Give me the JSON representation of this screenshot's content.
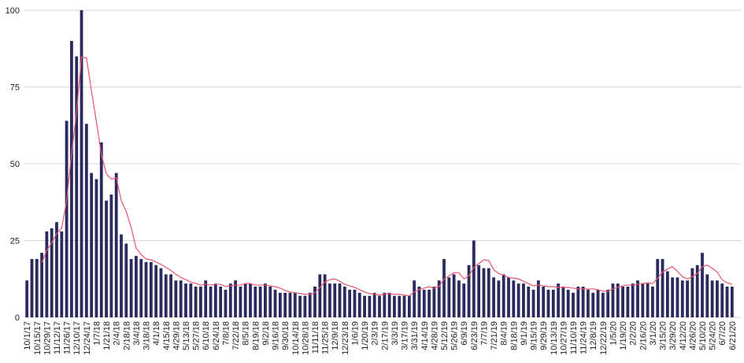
{
  "chart_data": {
    "type": "bar",
    "categories": [
      "10/1/17",
      null,
      "10/15/17",
      null,
      "10/29/17",
      null,
      "11/12/17",
      null,
      "11/26/17",
      null,
      "12/10/17",
      null,
      "12/24/17",
      null,
      "1/7/18",
      null,
      "1/21/18",
      null,
      "2/4/18",
      null,
      "2/18/18",
      null,
      "3/4/18",
      null,
      "3/18/18",
      null,
      "4/1/18",
      null,
      "4/15/18",
      null,
      "4/29/18",
      null,
      "5/13/18",
      null,
      "5/27/18",
      null,
      "6/10/18",
      null,
      "6/24/18",
      null,
      "7/8/18",
      null,
      "7/22/18",
      null,
      "8/5/18",
      null,
      "8/19/18",
      null,
      "9/2/18",
      null,
      "9/16/18",
      null,
      "9/30/18",
      null,
      "10/14/18",
      null,
      "10/28/18",
      null,
      "11/11/18",
      null,
      "11/25/18",
      null,
      "12/9/18",
      null,
      "12/23/18",
      null,
      "1/6/19",
      null,
      "1/20/19",
      null,
      "2/3/19",
      null,
      "2/17/19",
      null,
      "3/3/19",
      null,
      "3/17/19",
      null,
      "3/31/19",
      null,
      "4/14/19",
      null,
      "4/28/19",
      null,
      "5/12/19",
      null,
      "5/26/19",
      null,
      "6/9/19",
      null,
      "6/23/19",
      null,
      "7/7/19",
      null,
      "7/21/19",
      null,
      "8/4/19",
      null,
      "8/18/19",
      null,
      "9/1/19",
      null,
      "9/15/19",
      null,
      "9/29/19",
      null,
      "10/13/19",
      null,
      "10/27/19",
      null,
      "11/10/19",
      null,
      "11/24/19",
      null,
      "12/8/19",
      null,
      "12/22/19",
      null,
      "1/5/20",
      null,
      "1/19/20",
      null,
      "2/2/20",
      null,
      "2/16/20",
      null,
      "3/1/20",
      null,
      "3/15/20",
      null,
      "3/29/20",
      null,
      "4/12/20",
      null,
      "4/26/20",
      null,
      "5/10/20",
      null,
      "5/24/20",
      null,
      "6/7/20",
      null,
      "6/21/20"
    ],
    "series": [
      {
        "color": "#2b2a5f",
        "values": [
          12,
          19,
          19,
          21,
          28,
          29,
          31,
          28,
          64,
          90,
          85,
          100,
          63,
          47,
          45,
          57,
          38,
          40,
          47,
          27,
          24,
          19,
          20,
          19,
          18,
          18,
          17,
          16,
          14,
          14,
          12,
          12,
          11,
          11,
          10,
          10,
          12,
          10,
          11,
          10,
          9,
          11,
          12,
          10,
          11,
          11,
          10,
          10,
          11,
          10,
          9,
          8,
          8,
          8,
          8,
          7,
          7,
          8,
          10,
          14,
          14,
          11,
          11,
          11,
          10,
          9,
          9,
          8,
          7,
          7,
          8,
          7,
          8,
          8,
          7,
          7,
          7,
          7,
          12,
          10,
          9,
          9,
          10,
          12,
          19,
          13,
          14,
          12,
          11,
          17,
          25,
          17,
          16,
          16,
          13,
          12,
          14,
          13,
          12,
          11,
          11,
          10,
          9,
          12,
          10,
          9,
          9,
          11,
          10,
          9,
          8,
          10,
          10,
          9,
          8,
          9,
          8,
          9,
          11,
          11,
          10,
          10,
          11,
          12,
          11,
          11,
          10,
          19,
          19,
          15,
          13,
          13,
          12,
          12,
          16,
          17,
          21,
          14,
          12,
          12,
          11,
          10,
          10
        ]
      },
      {
        "type": "line",
        "color": "#e85570",
        "values": [
          null,
          null,
          null,
          17.75,
          21.75,
          24.25,
          27.25,
          29,
          38,
          53.25,
          66.75,
          84.75,
          84.5,
          73.75,
          63.75,
          53,
          46.75,
          45,
          45.5,
          38,
          34.5,
          29.25,
          22.5,
          20.5,
          19,
          18.75,
          18,
          17.25,
          16.25,
          15.25,
          14,
          13,
          12.25,
          11.5,
          11,
          10.5,
          10.75,
          10.5,
          10.75,
          10.75,
          10,
          10.25,
          10.5,
          10.5,
          11,
          11,
          10.5,
          10.5,
          10.5,
          10.25,
          10,
          9.5,
          8.75,
          8.25,
          8,
          7.75,
          7.5,
          7.5,
          8,
          9.75,
          11.5,
          12.25,
          12.5,
          11.75,
          10.75,
          10.25,
          9.75,
          9,
          8.25,
          7.75,
          7.5,
          7.25,
          7.5,
          7.75,
          7.5,
          7.5,
          7.25,
          7,
          8.25,
          9,
          9.5,
          10,
          9.5,
          10,
          12.5,
          13.5,
          14.5,
          14.5,
          12.5,
          13.5,
          16.25,
          17.5,
          18.75,
          18.5,
          15.5,
          14.25,
          13.75,
          13,
          12.75,
          12.5,
          11.75,
          11,
          10.25,
          10.5,
          10.25,
          10,
          10,
          9.75,
          9.75,
          9.75,
          9.5,
          9.25,
          9.25,
          9.25,
          9.25,
          9,
          8.5,
          8.5,
          9.25,
          9.75,
          10.25,
          10.5,
          10.5,
          10.75,
          11,
          11.25,
          11,
          12.75,
          14.75,
          15.75,
          16.5,
          15,
          13.25,
          12.5,
          13.25,
          14.25,
          16.5,
          17,
          16,
          14.75,
          12.25,
          11.25,
          10.75
        ]
      }
    ],
    "ylim": [
      0,
      100
    ],
    "yticks": [
      0,
      25,
      50,
      75,
      100
    ],
    "grid": true
  }
}
